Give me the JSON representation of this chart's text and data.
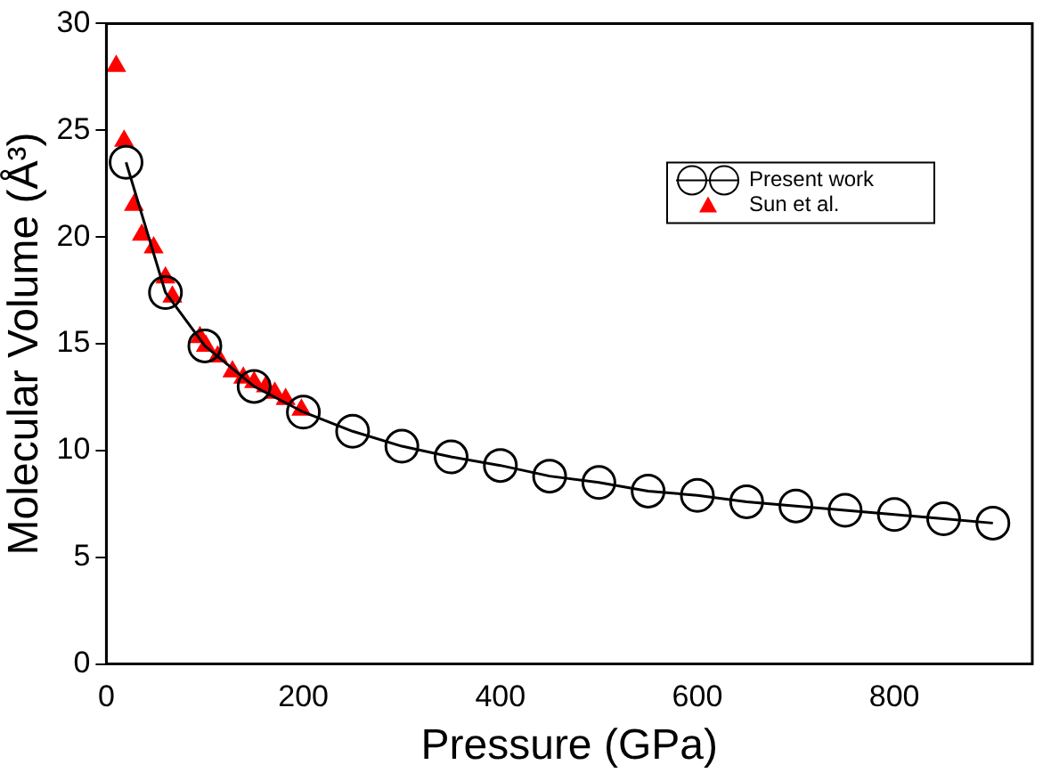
{
  "chart_data": {
    "type": "line",
    "xlabel": "Pressure (GPa)",
    "ylabel": "Molecular Volume (Å³)",
    "xlim": [
      0,
      940
    ],
    "ylim": [
      0,
      30
    ],
    "xticks": [
      0,
      200,
      400,
      600,
      800
    ],
    "yticks": [
      0,
      5,
      10,
      15,
      20,
      25,
      30
    ],
    "grid": false,
    "legend": "top right",
    "series": [
      {
        "name": "Present work",
        "color": "#000000",
        "marker": "circle",
        "x": [
          20,
          60,
          100,
          150,
          200,
          250,
          300,
          350,
          400,
          450,
          500,
          550,
          600,
          650,
          700,
          750,
          800,
          850,
          900
        ],
        "values": [
          23.5,
          17.4,
          14.9,
          13.0,
          11.8,
          10.9,
          10.2,
          9.7,
          9.3,
          8.8,
          8.5,
          8.1,
          7.9,
          7.6,
          7.4,
          7.2,
          7.0,
          6.8,
          6.6
        ]
      },
      {
        "name": "Sun et al.",
        "type": "scatter",
        "color": "#ff0000",
        "marker": "triangle",
        "x": [
          10,
          18,
          28,
          36,
          48,
          60,
          67,
          95,
          101,
          113,
          128,
          139,
          150,
          162,
          171,
          182,
          198
        ],
        "values": [
          28.0,
          24.5,
          21.5,
          20.1,
          19.5,
          18.1,
          17.2,
          15.3,
          14.9,
          14.4,
          13.7,
          13.4,
          13.2,
          13.0,
          12.7,
          12.4,
          11.9
        ]
      }
    ]
  }
}
